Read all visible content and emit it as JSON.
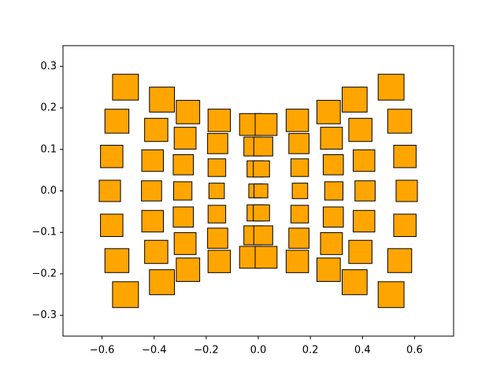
{
  "chart_data": {
    "type": "scatter",
    "marker": "square",
    "color": "#ffa500",
    "edgecolor": "#000000",
    "x": [
      -0.51,
      -0.543,
      -0.563,
      -0.57,
      -0.563,
      -0.543,
      -0.51,
      -0.37,
      -0.392,
      -0.406,
      -0.41,
      -0.406,
      -0.392,
      -0.37,
      -0.27,
      -0.281,
      -0.288,
      -0.29,
      -0.288,
      -0.281,
      -0.27,
      -0.15,
      -0.156,
      -0.159,
      -0.16,
      -0.159,
      -0.156,
      -0.15,
      -0.03,
      -0.019,
      -0.012,
      -0.01,
      -0.012,
      -0.019,
      -0.03,
      0.03,
      0.019,
      0.012,
      0.01,
      0.012,
      0.019,
      0.03,
      0.15,
      0.156,
      0.159,
      0.16,
      0.159,
      0.156,
      0.15,
      0.27,
      0.281,
      0.288,
      0.29,
      0.288,
      0.281,
      0.27,
      0.37,
      0.392,
      0.406,
      0.41,
      0.406,
      0.392,
      0.37,
      0.51,
      0.543,
      0.563,
      0.57,
      0.563,
      0.543,
      0.51
    ],
    "values": [
      0.25,
      0.168,
      0.083,
      0,
      -0.083,
      -0.168,
      -0.25,
      0.22,
      0.147,
      0.073,
      0,
      -0.073,
      -0.147,
      -0.22,
      0.19,
      0.127,
      0.063,
      0,
      -0.063,
      -0.127,
      -0.19,
      0.17,
      0.114,
      0.056,
      0,
      -0.056,
      -0.114,
      -0.17,
      0.16,
      0.107,
      0.053,
      0,
      -0.053,
      -0.107,
      -0.16,
      0.16,
      0.107,
      0.053,
      0,
      -0.053,
      -0.107,
      -0.16,
      0.17,
      0.114,
      0.056,
      0,
      -0.056,
      -0.114,
      -0.17,
      0.19,
      0.127,
      0.063,
      0,
      -0.063,
      -0.127,
      -0.19,
      0.22,
      0.147,
      0.073,
      0,
      -0.073,
      -0.147,
      -0.22,
      0.25,
      0.168,
      0.083,
      0,
      -0.083,
      -0.168,
      -0.25
    ],
    "sizes": [
      560,
      480,
      420,
      380,
      420,
      480,
      560,
      520,
      450,
      390,
      340,
      390,
      450,
      520,
      460,
      400,
      340,
      280,
      340,
      400,
      460,
      420,
      340,
      260,
      200,
      260,
      340,
      420,
      400,
      300,
      220,
      160,
      220,
      300,
      400,
      400,
      300,
      220,
      160,
      220,
      300,
      400,
      420,
      340,
      260,
      200,
      260,
      340,
      420,
      460,
      400,
      340,
      280,
      340,
      400,
      460,
      520,
      450,
      390,
      340,
      390,
      450,
      520,
      560,
      480,
      420,
      380,
      420,
      480,
      560
    ],
    "xlim": [
      -0.75,
      0.75
    ],
    "ylim": [
      -0.35,
      0.35
    ],
    "xticks": [
      {
        "value": -0.6,
        "label": "−0.6"
      },
      {
        "value": -0.4,
        "label": "−0.4"
      },
      {
        "value": -0.2,
        "label": "−0.2"
      },
      {
        "value": 0,
        "label": "0.0"
      },
      0.2,
      0.4,
      0.6
    ],
    "yticks": [
      {
        "value": -0.3,
        "label": "−0.3"
      },
      {
        "value": -0.2,
        "label": "−0.2"
      },
      {
        "value": -0.1,
        "label": "−0.1"
      },
      {
        "value": 0,
        "label": "0.0"
      },
      0.1,
      0.2,
      0.3
    ],
    "grid": false
  }
}
